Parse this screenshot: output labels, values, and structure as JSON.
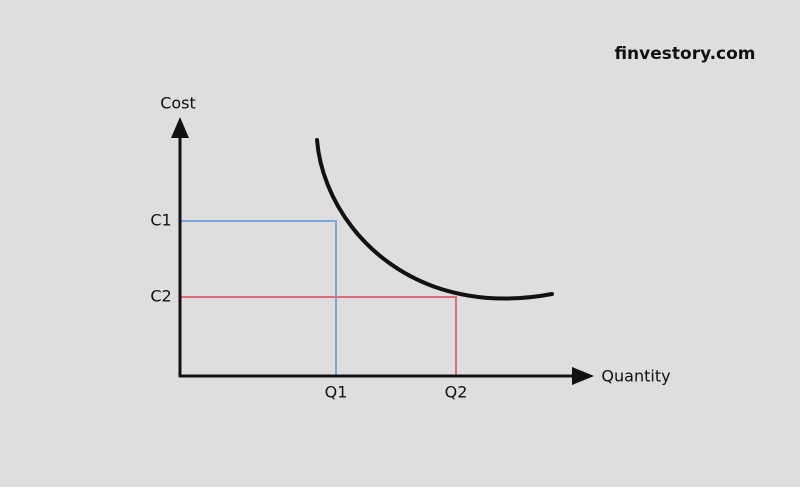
{
  "header": {
    "brand": "finvestory.com"
  },
  "axes": {
    "y_label": "Cost",
    "x_label": "Quantity"
  },
  "levels": {
    "cost": [
      "C1",
      "C2"
    ],
    "quantity": [
      "Q1",
      "Q2"
    ]
  }
}
